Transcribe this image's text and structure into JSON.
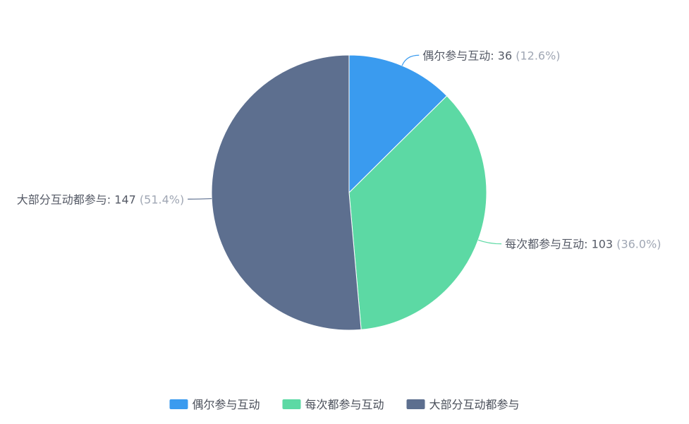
{
  "chart_data": {
    "type": "pie",
    "title": "",
    "series": [
      {
        "name": "偶尔参与互动",
        "value": 36,
        "percent_label": "(12.6%)",
        "color": "#3a9bef"
      },
      {
        "name": "每次都参与互动",
        "value": 103,
        "percent_label": "(36.0%)",
        "color": "#5cd9a4"
      },
      {
        "name": "大部分互动都参与",
        "value": 147,
        "percent_label": "(51.4%)",
        "color": "#5d6f8f"
      }
    ],
    "start_angle": "12 o'clock",
    "direction": "clockwise",
    "legend": {
      "position": "bottom-center",
      "items": [
        "偶尔参与互动",
        "每次都参与互动",
        "大部分互动都参与"
      ]
    }
  }
}
